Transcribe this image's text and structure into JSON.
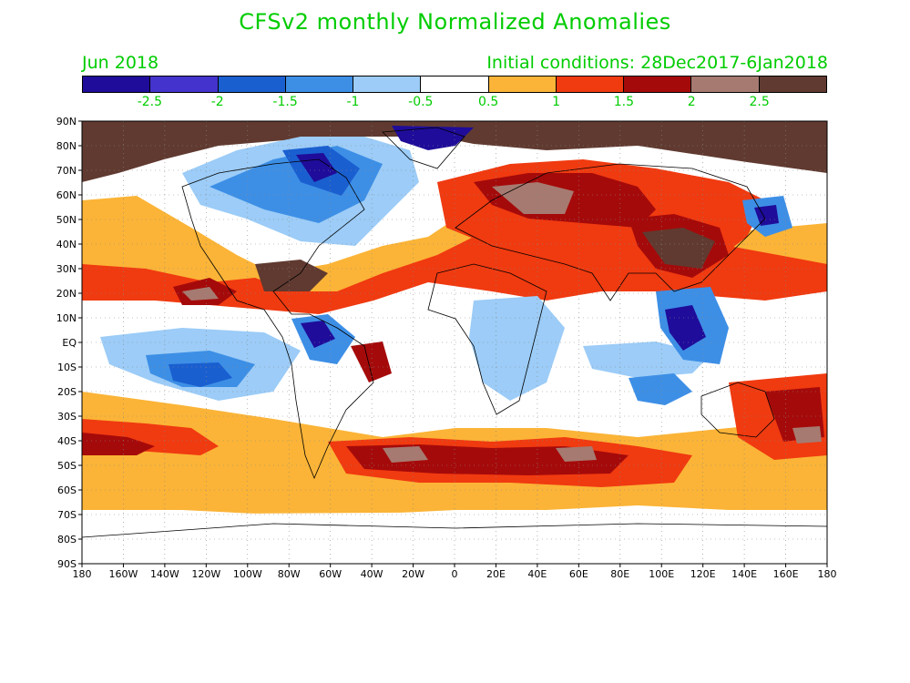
{
  "title": "CFSv2 monthly Normalized Anomalies",
  "month": "Jun 2018",
  "initial_conditions": "Initial conditions: 28Dec2017-6Jan2018",
  "colorbar": {
    "colors": [
      "#1f0c9a",
      "#4433cc",
      "#1a5fd0",
      "#3d8fe6",
      "#9cccf7",
      "#ffffff",
      "#fbb437",
      "#f03a10",
      "#a50a0a",
      "#a67a70",
      "#603a30"
    ],
    "labels": [
      "-2.5",
      "-2",
      "-1.5",
      "-1",
      "-0.5",
      "0.5",
      "1",
      "1.5",
      "2",
      "2.5"
    ]
  },
  "lat_labels": [
    "90N",
    "80N",
    "70N",
    "60N",
    "50N",
    "40N",
    "30N",
    "20N",
    "10N",
    "EQ",
    "10S",
    "20S",
    "30S",
    "40S",
    "50S",
    "60S",
    "70S",
    "80S",
    "90S"
  ],
  "lon_labels": [
    "180",
    "160W",
    "140W",
    "120W",
    "100W",
    "80W",
    "60W",
    "40W",
    "20W",
    "0",
    "20E",
    "40E",
    "60E",
    "80E",
    "100E",
    "120E",
    "140E",
    "160E",
    "180"
  ]
}
